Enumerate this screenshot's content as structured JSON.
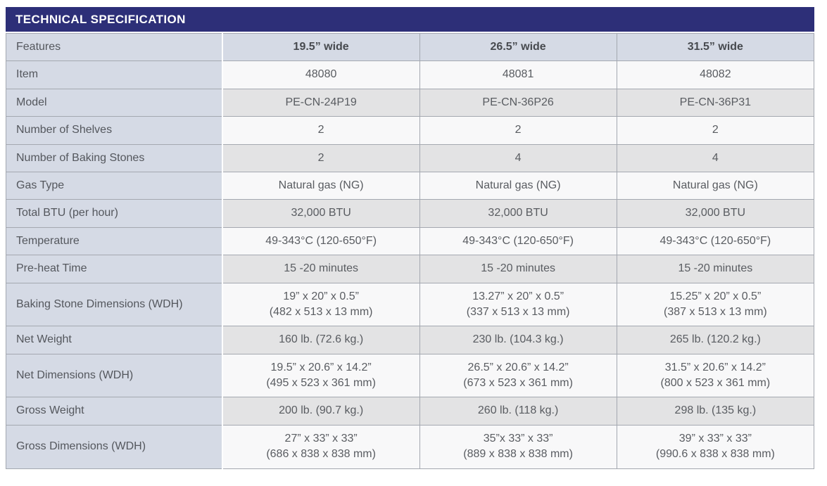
{
  "title": "TECHNICAL SPECIFICATION",
  "colors": {
    "banner_bg": "#2d2f78",
    "banner_text": "#ffffff",
    "label_column_bg": "#d5dae5",
    "row_light_bg": "#f8f8f9",
    "row_dark_bg": "#e3e3e4",
    "border": "#a4a8b0",
    "text": "#54575d"
  },
  "table": {
    "feature_header": "Features",
    "columns": [
      "19.5” wide",
      "26.5” wide",
      "31.5” wide"
    ],
    "rows": [
      {
        "label": "Item",
        "values": [
          "48080",
          "48081",
          "48082"
        ]
      },
      {
        "label": "Model",
        "values": [
          "PE-CN-24P19",
          "PE-CN-36P26",
          "PE-CN-36P31"
        ]
      },
      {
        "label": "Number of Shelves",
        "values": [
          "2",
          "2",
          "2"
        ]
      },
      {
        "label": "Number of Baking Stones",
        "values": [
          "2",
          "4",
          "4"
        ]
      },
      {
        "label": "Gas Type",
        "values": [
          "Natural gas (NG)",
          "Natural gas (NG)",
          "Natural gas (NG)"
        ]
      },
      {
        "label": "Total BTU (per hour)",
        "values": [
          "32,000 BTU",
          "32,000 BTU",
          "32,000 BTU"
        ]
      },
      {
        "label": "Temperature",
        "values": [
          "49-343°C (120-650°F)",
          "49-343°C (120-650°F)",
          "49-343°C (120-650°F)"
        ]
      },
      {
        "label": "Pre-heat Time",
        "values": [
          "15 -20 minutes",
          "15 -20 minutes",
          "15 -20 minutes"
        ]
      },
      {
        "label": "Baking Stone Dimensions (WDH)",
        "values": [
          "19” x 20” x 0.5”\n(482 x 513 x 13 mm)",
          "13.27” x 20” x 0.5”\n(337 x 513 x 13 mm)",
          "15.25” x 20” x 0.5”\n(387 x 513 x 13 mm)"
        ]
      },
      {
        "label": "Net Weight",
        "values": [
          "160 lb. (72.6 kg.)",
          "230 lb. (104.3 kg.)",
          "265 lb. (120.2 kg.)"
        ]
      },
      {
        "label": "Net Dimensions (WDH)",
        "values": [
          "19.5” x 20.6” x 14.2”\n(495 x 523 x 361 mm)",
          "26.5” x 20.6” x 14.2”\n(673 x 523 x 361 mm)",
          "31.5” x 20.6” x 14.2”\n(800 x 523 x 361 mm)"
        ]
      },
      {
        "label": "Gross Weight",
        "values": [
          "200 lb. (90.7 kg.)",
          "260 lb. (118 kg.)",
          "298 lb. (135 kg.)"
        ]
      },
      {
        "label": "Gross Dimensions (WDH)",
        "values": [
          "27” x 33” x 33”\n(686 x 838 x 838 mm)",
          "35”x 33” x 33”\n(889 x 838 x 838 mm)",
          "39” x 33” x 33”\n(990.6 x 838 x 838 mm)"
        ]
      }
    ]
  }
}
